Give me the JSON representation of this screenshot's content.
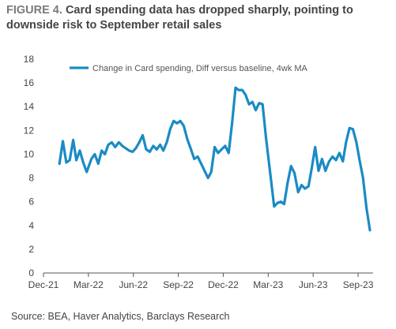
{
  "figure": {
    "label": "FIGURE 4.",
    "title": "Card spending data has dropped sharply, pointing to downside risk to September retail sales",
    "source": "Source: BEA, Haver Analytics, Barclays Research"
  },
  "chart_data": {
    "type": "line",
    "title": "Card spending data has dropped sharply, pointing to downside risk to September retail sales",
    "xlabel": "",
    "ylabel": "",
    "ylim": [
      0,
      18
    ],
    "yticks": [
      0,
      2,
      4,
      6,
      8,
      10,
      12,
      14,
      16,
      18
    ],
    "xlim": [
      "2021-12",
      "2023-10"
    ],
    "xticks": [
      "Dec-21",
      "Mar-22",
      "Jun-22",
      "Sep-22",
      "Dec-22",
      "Mar-23",
      "Jun-23",
      "Sep-23"
    ],
    "legend_position": "top",
    "grid": false,
    "series": [
      {
        "name": "Change in Card spending, Diff versus baseline, 4wk MA",
        "color": "#1a8bc4",
        "x": [
          "2022-01-03",
          "2022-01-10",
          "2022-01-17",
          "2022-01-24",
          "2022-01-31",
          "2022-02-07",
          "2022-02-14",
          "2022-02-21",
          "2022-02-28",
          "2022-03-07",
          "2022-03-14",
          "2022-03-21",
          "2022-03-28",
          "2022-04-04",
          "2022-04-11",
          "2022-04-18",
          "2022-04-25",
          "2022-05-02",
          "2022-05-09",
          "2022-05-16",
          "2022-05-23",
          "2022-05-30",
          "2022-06-06",
          "2022-06-13",
          "2022-06-20",
          "2022-06-27",
          "2022-07-04",
          "2022-07-11",
          "2022-07-18",
          "2022-07-25",
          "2022-08-01",
          "2022-08-08",
          "2022-08-15",
          "2022-08-22",
          "2022-08-29",
          "2022-09-05",
          "2022-09-12",
          "2022-09-19",
          "2022-09-26",
          "2022-10-03",
          "2022-10-10",
          "2022-10-17",
          "2022-10-24",
          "2022-10-31",
          "2022-11-07",
          "2022-11-14",
          "2022-11-21",
          "2022-11-28",
          "2022-12-05",
          "2022-12-12",
          "2022-12-19",
          "2022-12-26",
          "2023-01-02",
          "2023-01-09",
          "2023-01-16",
          "2023-01-23",
          "2023-01-30",
          "2023-02-06",
          "2023-02-13",
          "2023-02-20",
          "2023-02-27",
          "2023-03-06",
          "2023-03-13",
          "2023-03-20",
          "2023-03-27",
          "2023-04-03",
          "2023-04-10",
          "2023-04-17",
          "2023-04-24",
          "2023-05-01",
          "2023-05-08",
          "2023-05-15",
          "2023-05-22",
          "2023-05-29",
          "2023-06-05",
          "2023-06-12",
          "2023-06-19",
          "2023-06-26",
          "2023-07-03",
          "2023-07-10",
          "2023-07-17",
          "2023-07-24",
          "2023-07-31",
          "2023-08-07",
          "2023-08-14",
          "2023-08-21",
          "2023-08-28",
          "2023-09-04",
          "2023-09-11",
          "2023-09-18",
          "2023-09-25"
        ],
        "values": [
          9.2,
          11.1,
          9.3,
          9.5,
          11.2,
          9.5,
          10.3,
          9.3,
          8.5,
          9.6,
          10.0,
          9.2,
          10.3,
          10.0,
          10.8,
          11.0,
          10.6,
          11.0,
          10.7,
          10.5,
          10.3,
          10.2,
          10.5,
          11.0,
          11.6,
          10.4,
          10.2,
          10.7,
          10.4,
          10.8,
          10.3,
          11.0,
          12.1,
          12.8,
          12.6,
          12.8,
          12.4,
          11.3,
          10.5,
          9.6,
          9.8,
          9.2,
          8.6,
          8.0,
          8.5,
          10.6,
          10.1,
          10.4,
          10.7,
          10.1,
          12.6,
          15.6,
          15.4,
          15.4,
          15.0,
          14.2,
          14.4,
          13.7,
          14.3,
          14.2,
          11.4,
          8.1,
          5.6,
          5.9,
          6.0,
          5.8,
          7.6,
          9.0,
          8.4,
          6.8,
          7.4,
          7.1,
          7.3,
          8.9,
          10.6,
          8.6,
          9.6,
          8.6,
          9.4,
          9.8,
          9.5,
          10.1,
          9.4,
          11.0,
          12.2,
          12.1,
          11.0,
          9.5,
          8.0,
          5.5,
          3.6
        ]
      }
    ]
  }
}
